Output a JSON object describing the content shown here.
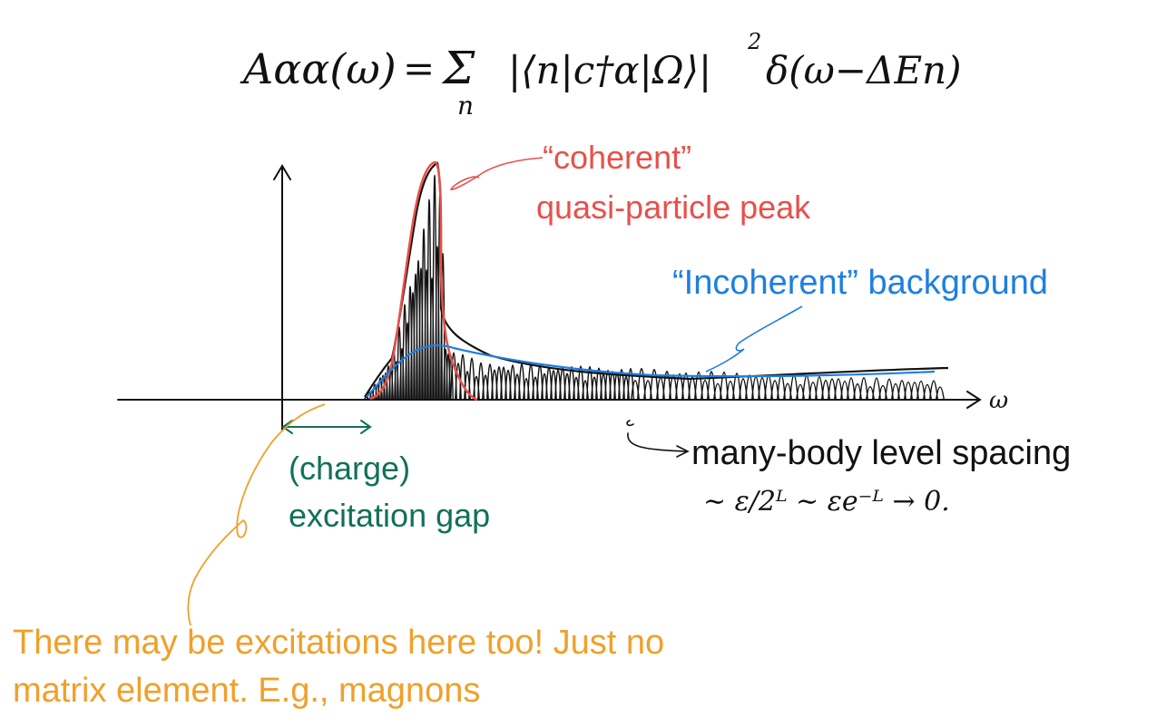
{
  "formula": {
    "lhs": "Aαα(ω)",
    "equals": "=",
    "sum": "Σ",
    "sum_index": "n",
    "matrix_element": "|⟨n|c†α|Ω⟩|",
    "power": "2",
    "delta": "δ(ω−ΔEn)"
  },
  "axis": {
    "x_symbol": "ω"
  },
  "labels": {
    "coherent_line1": "“coherent”",
    "coherent_line2": "quasi-particle peak",
    "incoherent": "“Incoherent” background",
    "level_spacing": "many-body level spacing",
    "scaling": "∼ ε/2ᴸ ∼ εe⁻ᴸ → 0.",
    "gap_line1": "(charge)",
    "gap_line2": "excitation gap",
    "note_line1": "There may be excitations here too! Just no",
    "note_line2": "matrix element. E.g., magnons"
  },
  "colors": {
    "ink": "#111111",
    "coherent": "#e8504a",
    "incoherent": "#1e7fe0",
    "gap": "#12705a",
    "note": "#f0a02a"
  }
}
